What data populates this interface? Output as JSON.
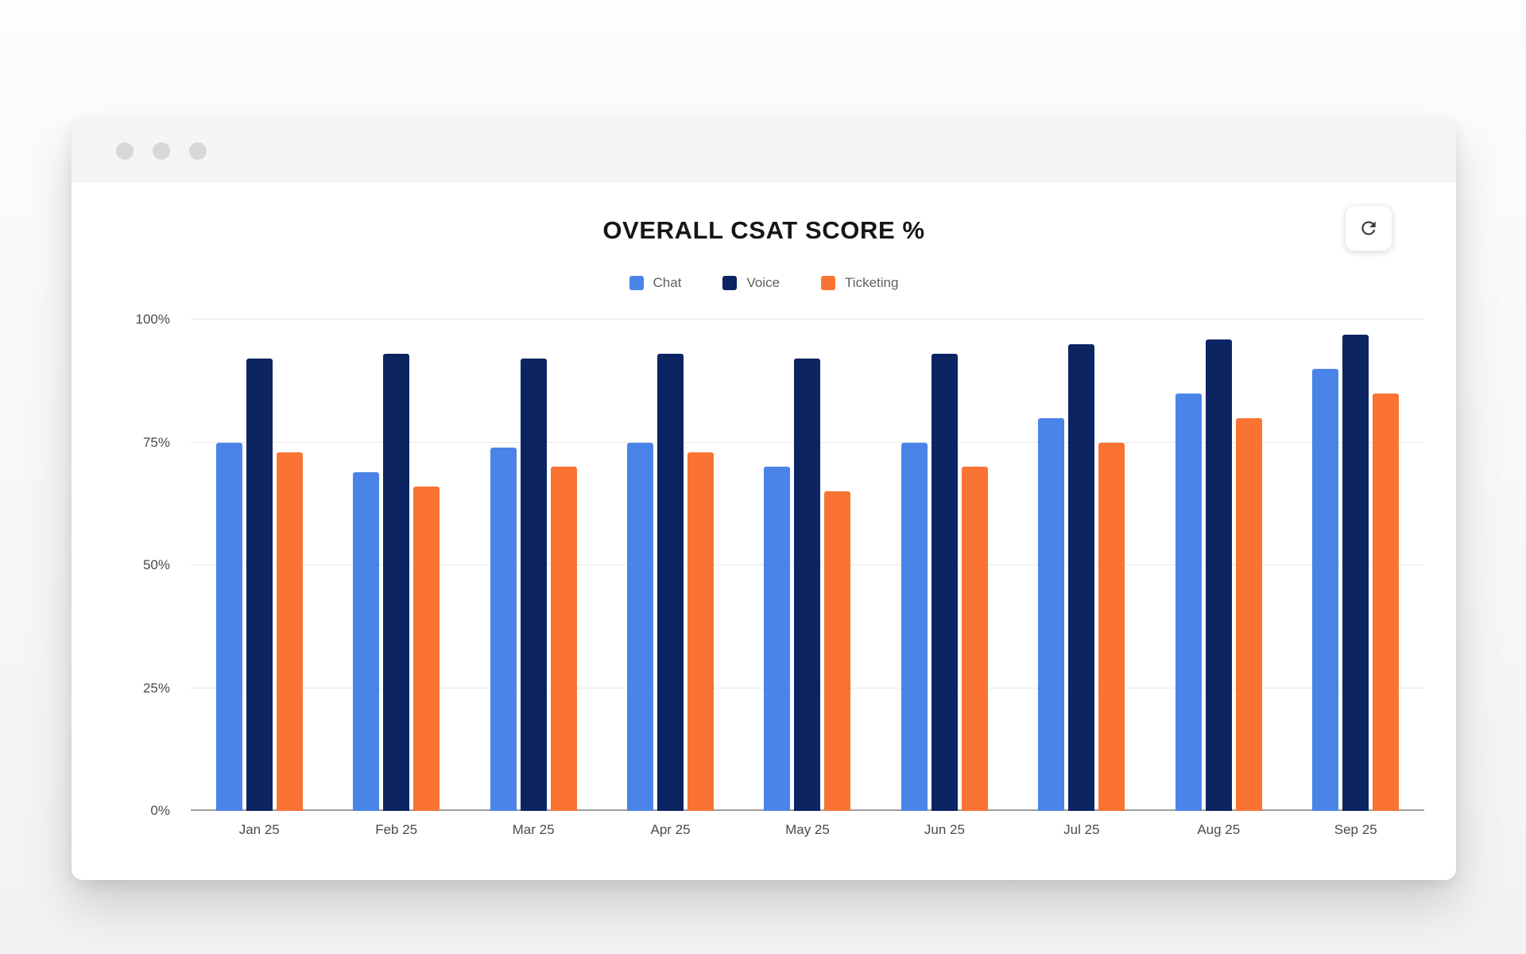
{
  "window": {
    "controls": [
      "dot",
      "dot",
      "dot"
    ]
  },
  "header": {
    "title": "OVERALL CSAT SCORE %"
  },
  "toolbar": {
    "refresh_icon": "refresh"
  },
  "chart_data": {
    "type": "bar",
    "title": "OVERALL CSAT SCORE %",
    "categories": [
      "Jan 25",
      "Feb 25",
      "Mar 25",
      "Apr 25",
      "May 25",
      "Jun 25",
      "Jul 25",
      "Aug 25",
      "Sep 25"
    ],
    "series": [
      {
        "name": "Chat",
        "color": "#4A84E8",
        "values": [
          75,
          69,
          74,
          75,
          70,
          75,
          80,
          85,
          90
        ]
      },
      {
        "name": "Voice",
        "color": "#0D2462",
        "values": [
          92,
          93,
          92,
          93,
          92,
          93,
          95,
          96,
          97
        ]
      },
      {
        "name": "Ticketing",
        "color": "#FA7333",
        "values": [
          73,
          66,
          70,
          73,
          65,
          70,
          75,
          80,
          85
        ]
      }
    ],
    "xlabel": "",
    "ylabel": "",
    "ylim": [
      0,
      100
    ],
    "y_ticks": [
      0,
      25,
      50,
      75,
      100
    ],
    "y_tick_suffix": "%",
    "grid": true,
    "legend_position": "top",
    "colors": {
      "grid_line": "#e8e8e8",
      "axis_line": "#9e9e9e",
      "tick_label": "#4a4a4a",
      "legend_label": "#5f5f5f"
    }
  }
}
